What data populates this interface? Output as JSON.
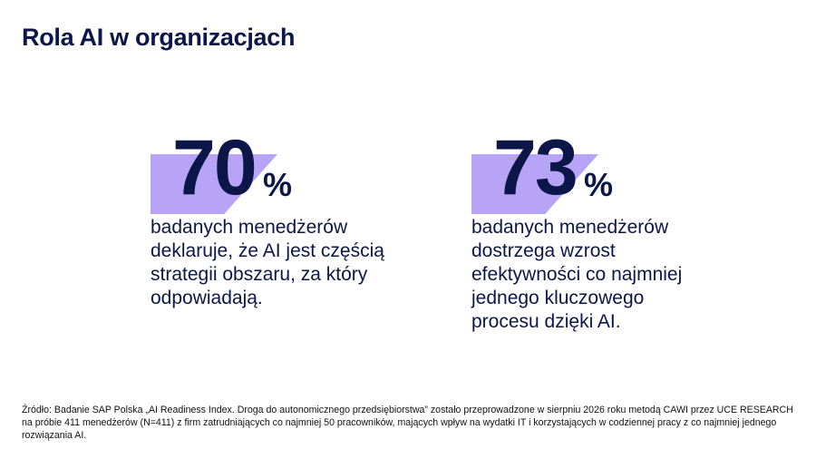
{
  "page": {
    "title": "Rola AI w organizacjach"
  },
  "stats": [
    {
      "number": "70",
      "unit": "%",
      "description": "badanych menedżerów\ndeklaruje, że AI jest częścią\nstrategii obszaru, za który\nodpowiadają."
    },
    {
      "number": "73",
      "unit": "%",
      "description": "badanych menedżerów\ndostrzega wzrost\nefektywności co najmniej\njednego kluczowego\nprocesu dzięki AI."
    }
  ],
  "footer": {
    "source": "Źródło: Badanie SAP Polska „AI Readiness Index. Droga do autonomicznego przedsiębiorstwa” zostało przeprowadzone w sierpniu 2026 roku metodą CAWI przez UCE RESEARCH na próbie 411 menedżerów (N=411) z firm zatrudniających co najmniej 50 pracowników, mających wpływ na wydatki IT i korzystających w codziennej pracy z co najmniej jednego rozwiązania AI."
  },
  "colors": {
    "primary_text": "#0d1648",
    "highlight": "#b7a4f7"
  }
}
